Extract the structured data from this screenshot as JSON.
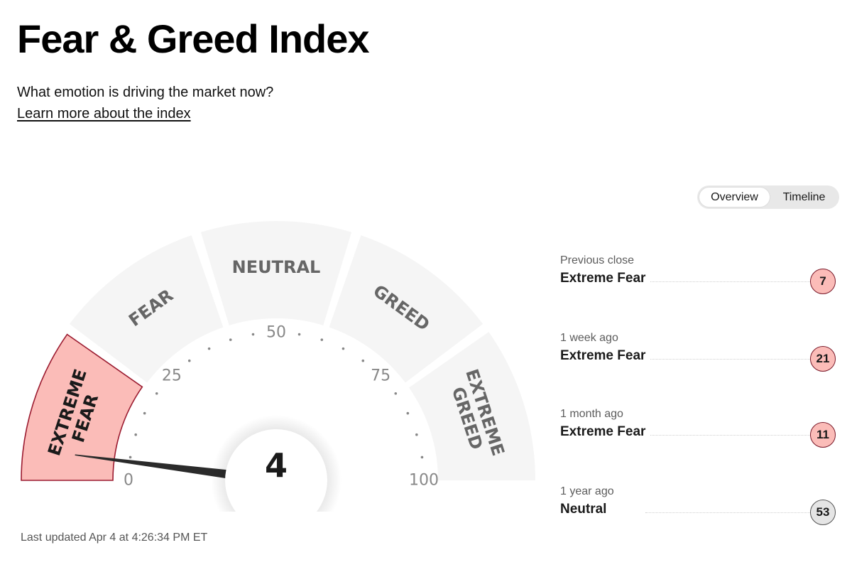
{
  "header": {
    "title": "Fear & Greed Index",
    "subtitle": "What emotion is driving the market now?",
    "learn_link": "Learn more about the index"
  },
  "tabs": {
    "overview": "Overview",
    "timeline": "Timeline",
    "active": "Overview"
  },
  "gauge": {
    "value": 4,
    "value_text": "4",
    "segments": [
      {
        "name": "extreme-fear",
        "line1": "EXTREME",
        "line2": "FEAR",
        "active": true
      },
      {
        "name": "fear",
        "line1": "FEAR",
        "line2": "",
        "active": false
      },
      {
        "name": "neutral",
        "line1": "NEUTRAL",
        "line2": "",
        "active": false
      },
      {
        "name": "greed",
        "line1": "GREED",
        "line2": "",
        "active": false
      },
      {
        "name": "extreme-greed",
        "line1": "EXTREME",
        "line2": "GREED",
        "active": false
      }
    ],
    "scale_labels": [
      "0",
      "25",
      "50",
      "75",
      "100"
    ],
    "colors": {
      "active_fill": "#fbbcb8",
      "active_stroke": "#9b1b30",
      "inactive_fill": "#f5f5f5",
      "label_color": "#666666",
      "needle": "#2b2b2b"
    }
  },
  "last_updated": "Last updated Apr 4 at 4:26:34 PM ET",
  "history": [
    {
      "label": "Previous close",
      "rating": "Extreme Fear",
      "value": "7"
    },
    {
      "label": "1 week ago",
      "rating": "Extreme Fear",
      "value": "21"
    },
    {
      "label": "1 month ago",
      "rating": "Extreme Fear",
      "value": "11"
    },
    {
      "label": "1 year ago",
      "rating": "Neutral",
      "value": "53"
    }
  ]
}
